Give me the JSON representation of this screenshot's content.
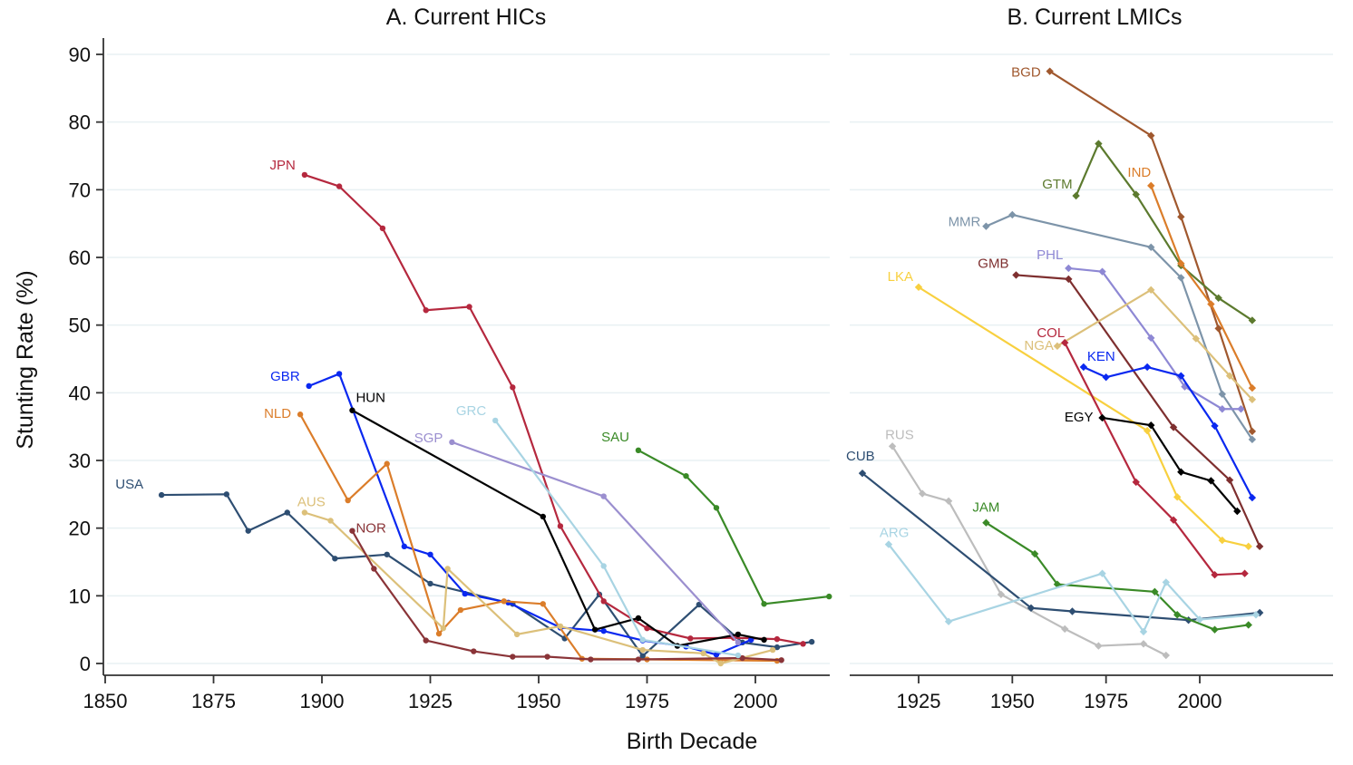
{
  "chart_data": [
    {
      "type": "line",
      "title": "A. Current HICs",
      "xlabel": "Birth Decade",
      "ylabel": "Stunting Rate (%)",
      "xlim": [
        1843,
        2018
      ],
      "ylim": [
        -4,
        95
      ],
      "xticks": [
        1850,
        1875,
        1900,
        1925,
        1950,
        1975,
        2000
      ],
      "yticks": [
        0,
        10,
        20,
        30,
        40,
        50,
        60,
        70,
        80,
        90
      ],
      "grid": true,
      "marker": "circle",
      "series": [
        {
          "name": "USA",
          "color": "#2e4e72",
          "x": [
            1863,
            1878,
            1883,
            1892,
            1903,
            1915,
            1925,
            1944,
            1956,
            1964,
            1974,
            1987,
            1997,
            2005,
            2013
          ],
          "y": [
            24.9,
            25.0,
            19.6,
            22.3,
            15.5,
            16.1,
            11.8,
            8.8,
            3.7,
            10.2,
            1.1,
            8.7,
            3.1,
            2.4,
            3.2
          ]
        },
        {
          "name": "JPN",
          "color": "#b5283e",
          "x": [
            1896,
            1904,
            1914,
            1924,
            1934,
            1944,
            1955,
            1965,
            1975,
            1985,
            1995,
            2005,
            2011
          ],
          "y": [
            72.2,
            70.5,
            64.3,
            52.2,
            52.7,
            40.8,
            20.3,
            9.2,
            5.2,
            3.7,
            3.8,
            3.6,
            2.9
          ]
        },
        {
          "name": "GBR",
          "color": "#0a28f0",
          "x": [
            1897,
            1904,
            1919,
            1925,
            1933,
            1943,
            1955,
            1965,
            1974,
            1984,
            1991,
            1999
          ],
          "y": [
            41.0,
            42.8,
            17.3,
            16.1,
            10.3,
            9.0,
            5.3,
            4.8,
            3.4,
            2.5,
            1.3,
            3.5
          ]
        },
        {
          "name": "HUN",
          "color": "#000000",
          "x": [
            1907,
            1951,
            1963,
            1973,
            1982,
            1996,
            2002
          ],
          "y": [
            37.4,
            21.7,
            5.0,
            6.7,
            2.6,
            4.3,
            3.5
          ]
        },
        {
          "name": "NLD",
          "color": "#db7d2a",
          "x": [
            1895,
            1906,
            1915,
            1927,
            1932,
            1942,
            1951,
            1960,
            1975,
            2005
          ],
          "y": [
            36.8,
            24.1,
            29.5,
            4.4,
            7.9,
            9.2,
            8.8,
            0.7,
            0.6,
            0.4
          ]
        },
        {
          "name": "AUS",
          "color": "#dcc07a",
          "x": [
            1896,
            1902,
            1928,
            1929,
            1945,
            1955,
            1974,
            1988,
            1992,
            2004
          ],
          "y": [
            22.3,
            21.1,
            5.2,
            14.0,
            4.3,
            5.5,
            2.0,
            1.5,
            0.0,
            2.0
          ]
        },
        {
          "name": "NOR",
          "color": "#8a3438",
          "x": [
            1907,
            1912,
            1924,
            1935,
            1944,
            1952,
            1962,
            1973,
            1997,
            2006
          ],
          "y": [
            19.6,
            14.0,
            3.4,
            1.8,
            1.0,
            1.0,
            0.6,
            0.6,
            0.8,
            0.5
          ]
        },
        {
          "name": "SGP",
          "color": "#9b8fcf",
          "x": [
            1930,
            1965,
            1996
          ],
          "y": [
            32.7,
            24.7,
            3.1
          ]
        },
        {
          "name": "GRC",
          "color": "#a8d4e3",
          "x": [
            1940,
            1965,
            1974,
            1996
          ],
          "y": [
            35.9,
            14.4,
            3.5,
            1.2
          ]
        },
        {
          "name": "SAU",
          "color": "#3a8a27",
          "x": [
            1973,
            1984,
            1991,
            2002,
            2017
          ],
          "y": [
            31.5,
            27.7,
            23.0,
            8.8,
            9.9
          ]
        }
      ]
    },
    {
      "type": "line",
      "title": "B. Current LMICs",
      "xlabel": "Birth Decade",
      "ylabel": "Stunting Rate (%)",
      "xlim": [
        1905,
        2020
      ],
      "ylim": [
        -4,
        95
      ],
      "xticks": [
        1925,
        1950,
        1975,
        2000
      ],
      "yticks": [
        0,
        10,
        20,
        30,
        40,
        50,
        60,
        70,
        80,
        90
      ],
      "grid": true,
      "marker": "diamond",
      "series": [
        {
          "name": "BGD",
          "color": "#a0582e",
          "x": [
            1960,
            1987,
            1995,
            2005,
            2014
          ],
          "y": [
            87.5,
            78.0,
            66.0,
            49.5,
            34.3
          ]
        },
        {
          "name": "GTM",
          "color": "#5c7a2e",
          "x": [
            1967,
            1973,
            1983,
            1995,
            2005,
            2014
          ],
          "y": [
            69.1,
            76.8,
            69.3,
            58.8,
            54.0,
            50.7
          ]
        },
        {
          "name": "IND",
          "color": "#db7d2a",
          "x": [
            1987,
            1995,
            2003,
            2014
          ],
          "y": [
            70.6,
            59.1,
            53.1,
            40.7
          ]
        },
        {
          "name": "MMR",
          "color": "#7d94a9",
          "x": [
            1943,
            1950,
            1987,
            1995,
            2006,
            2014
          ],
          "y": [
            64.6,
            66.3,
            61.5,
            57.0,
            39.8,
            33.1
          ]
        },
        {
          "name": "PHL",
          "color": "#8e88d4",
          "x": [
            1965,
            1974,
            1987,
            1996,
            2006,
            2011
          ],
          "y": [
            58.4,
            57.9,
            48.1,
            40.9,
            37.6,
            37.6
          ]
        },
        {
          "name": "GMB",
          "color": "#7e2f2f",
          "x": [
            1951,
            1965,
            1993,
            2008,
            2016
          ],
          "y": [
            57.4,
            56.8,
            34.9,
            27.1,
            17.3
          ]
        },
        {
          "name": "LKA",
          "color": "#f8d03f",
          "x": [
            1925,
            1986,
            1994,
            2006,
            2013
          ],
          "y": [
            55.6,
            34.4,
            24.6,
            18.2,
            17.3
          ]
        },
        {
          "name": "NGA",
          "color": "#dcc07a",
          "x": [
            1962,
            1987,
            1999,
            2008,
            2014
          ],
          "y": [
            46.9,
            55.2,
            48.0,
            42.5,
            39.0
          ]
        },
        {
          "name": "COL",
          "color": "#b5283e",
          "x": [
            1964,
            1983,
            1993,
            2004,
            2012
          ],
          "y": [
            47.4,
            26.8,
            21.2,
            13.1,
            13.3
          ]
        },
        {
          "name": "KEN",
          "color": "#0a28f0",
          "x": [
            1969,
            1975,
            1986,
            1995,
            2004,
            2014
          ],
          "y": [
            43.8,
            42.3,
            43.8,
            42.5,
            35.1,
            24.5
          ]
        },
        {
          "name": "EGY",
          "color": "#000000",
          "x": [
            1974,
            1987,
            1995,
            2003,
            2010
          ],
          "y": [
            36.3,
            35.2,
            28.3,
            27.0,
            22.5
          ]
        },
        {
          "name": "RUS",
          "color": "#bdbdbd",
          "x": [
            1918,
            1926,
            1933,
            1947,
            1964,
            1973,
            1985,
            1991
          ],
          "y": [
            32.1,
            25.1,
            24.0,
            10.2,
            5.1,
            2.6,
            2.9,
            1.2
          ]
        },
        {
          "name": "CUB",
          "color": "#2e4e72",
          "x": [
            1910,
            1955,
            1966,
            1997,
            2016
          ],
          "y": [
            28.1,
            8.2,
            7.7,
            6.4,
            7.5
          ]
        },
        {
          "name": "JAM",
          "color": "#3a8a27",
          "x": [
            1943,
            1956,
            1962,
            1988,
            1994,
            2004,
            2013
          ],
          "y": [
            20.8,
            16.2,
            11.7,
            10.6,
            7.2,
            5.0,
            5.7
          ]
        },
        {
          "name": "ARG",
          "color": "#a8d4e3",
          "x": [
            1917,
            1933,
            1974,
            1985,
            1991,
            2000,
            2015
          ],
          "y": [
            17.6,
            6.2,
            13.3,
            4.7,
            12.0,
            6.5,
            7.2
          ]
        }
      ]
    }
  ]
}
